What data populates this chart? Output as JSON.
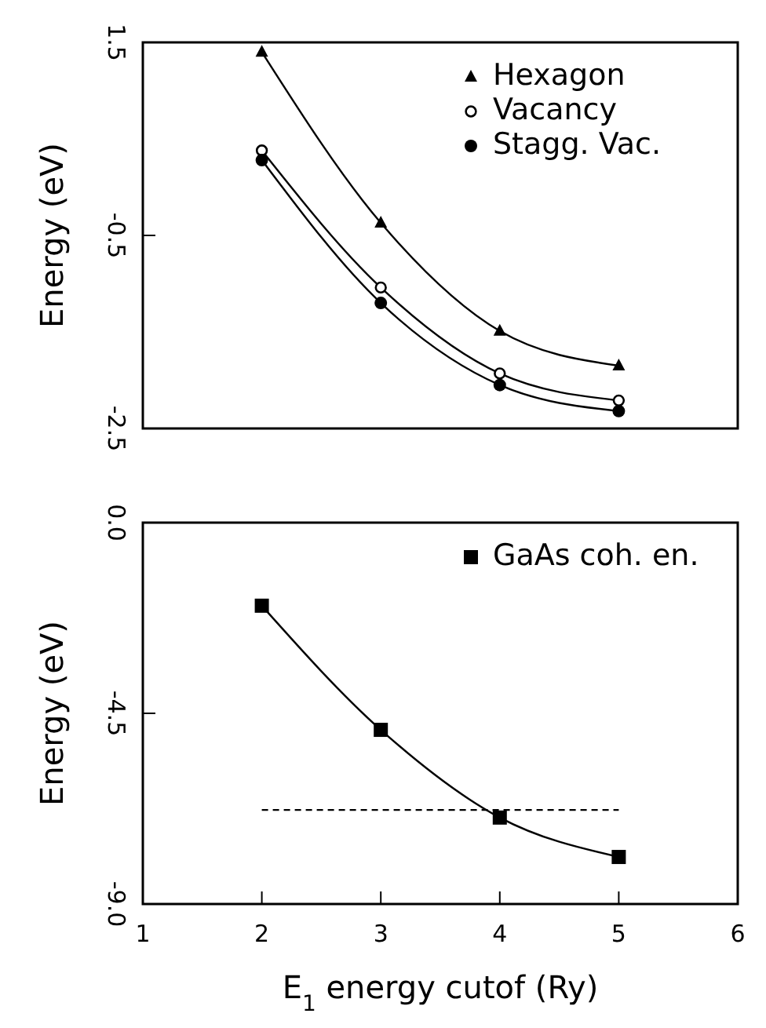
{
  "chart_data": [
    {
      "type": "line",
      "ylabel": "Energy (eV)",
      "x": [
        2,
        3,
        4,
        5
      ],
      "xlim": [
        1,
        6
      ],
      "xticks": [
        1,
        2,
        3,
        4,
        5,
        6
      ],
      "ylim": [
        -2.5,
        1.5
      ],
      "yticks": [
        1.5,
        -0.5,
        -2.5
      ],
      "tick_labels": "y",
      "legend": "top right",
      "grid": false,
      "series": [
        {
          "name": "Hexagon",
          "color": "#000000",
          "marker": "triangle",
          "values": [
            1.4,
            -0.37,
            -1.49,
            -1.85
          ]
        },
        {
          "name": "Vacancy",
          "color": "#000000",
          "marker": "open-circle",
          "values": [
            0.38,
            -1.04,
            -1.93,
            -2.21
          ]
        },
        {
          "name": "Stagg. Vac.",
          "color": "#000000",
          "marker": "circle",
          "values": [
            0.28,
            -1.2,
            -2.05,
            -2.32
          ]
        }
      ]
    },
    {
      "type": "line",
      "ylabel": "Energy (eV)",
      "xlabel": "E$_{1}$ energy cutof (Ry)",
      "x": [
        2,
        3,
        4,
        5
      ],
      "xlim": [
        1,
        6
      ],
      "xticks": [
        1,
        2,
        3,
        4,
        5,
        6
      ],
      "ylim": [
        -9,
        0
      ],
      "yticks": [
        {
          "value": 0,
          "label": "0.0"
        },
        -4.5,
        {
          "value": -9,
          "label": "-9.0"
        }
      ],
      "legend": "top right",
      "grid": false,
      "series": [
        {
          "name": "GaAs coh. en.",
          "color": "#000000",
          "marker": "square",
          "values": [
            -1.96,
            -4.89,
            -6.96,
            -7.89
          ]
        },
        {
          "color": "#000000",
          "marker": "none",
          "line_style": "dashed",
          "x": [
            2,
            5
          ],
          "values": [
            -6.78,
            -6.78
          ]
        }
      ]
    }
  ]
}
